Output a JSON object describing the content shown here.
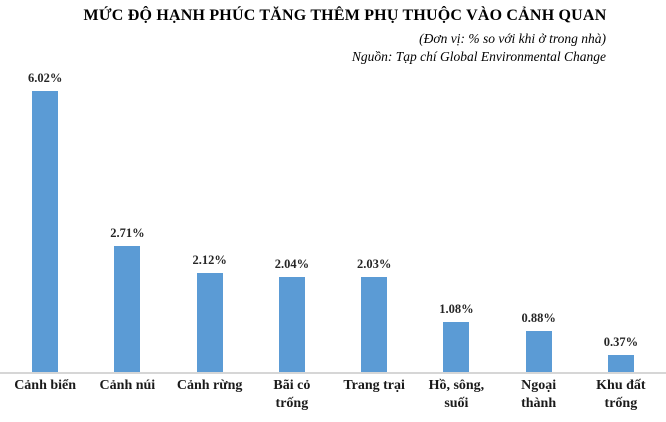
{
  "title": "MỨC ĐỘ HẠNH PHÚC TĂNG THÊM PHỤ THUỘC VÀO CẢNH QUAN",
  "subtitle_unit": "(Đơn vị: % so với khi ở trong nhà)",
  "subtitle_source": "Nguồn: Tạp chí Global Environmental Change",
  "colors": {
    "bar": "#5B9BD5",
    "axis_line": "#D6D6D6",
    "label_text": "#262626",
    "title_text": "#000000"
  },
  "chart_data": {
    "type": "bar",
    "title": "MỨC ĐỘ HẠNH PHÚC TĂNG THÊM PHỤ THUỘC VÀO CẢNH QUAN",
    "unit_note": "(Đơn vị: % so với khi ở trong nhà)",
    "source_note": "Nguồn: Tạp chí Global Environmental Change",
    "categories": [
      "Cảnh biển",
      "Cảnh núi",
      "Cảnh rừng",
      "Bãi cỏ\ntrống",
      "Trang trại",
      "Hồ, sông,\nsuối",
      "Ngoại\nthành",
      "Khu đất\ntrống"
    ],
    "values": [
      6.02,
      2.71,
      2.12,
      2.04,
      2.03,
      1.08,
      0.88,
      0.37
    ],
    "value_labels": [
      "6.02%",
      "2.71%",
      "2.12%",
      "2.04%",
      "2.03%",
      "1.08%",
      "0.88%",
      "0.37%"
    ],
    "xlabel": "",
    "ylabel": "",
    "ylim": [
      0,
      6.5
    ],
    "grid": false,
    "legend": false,
    "y_axis_visible": false,
    "data_labels_position": "above-bar"
  }
}
